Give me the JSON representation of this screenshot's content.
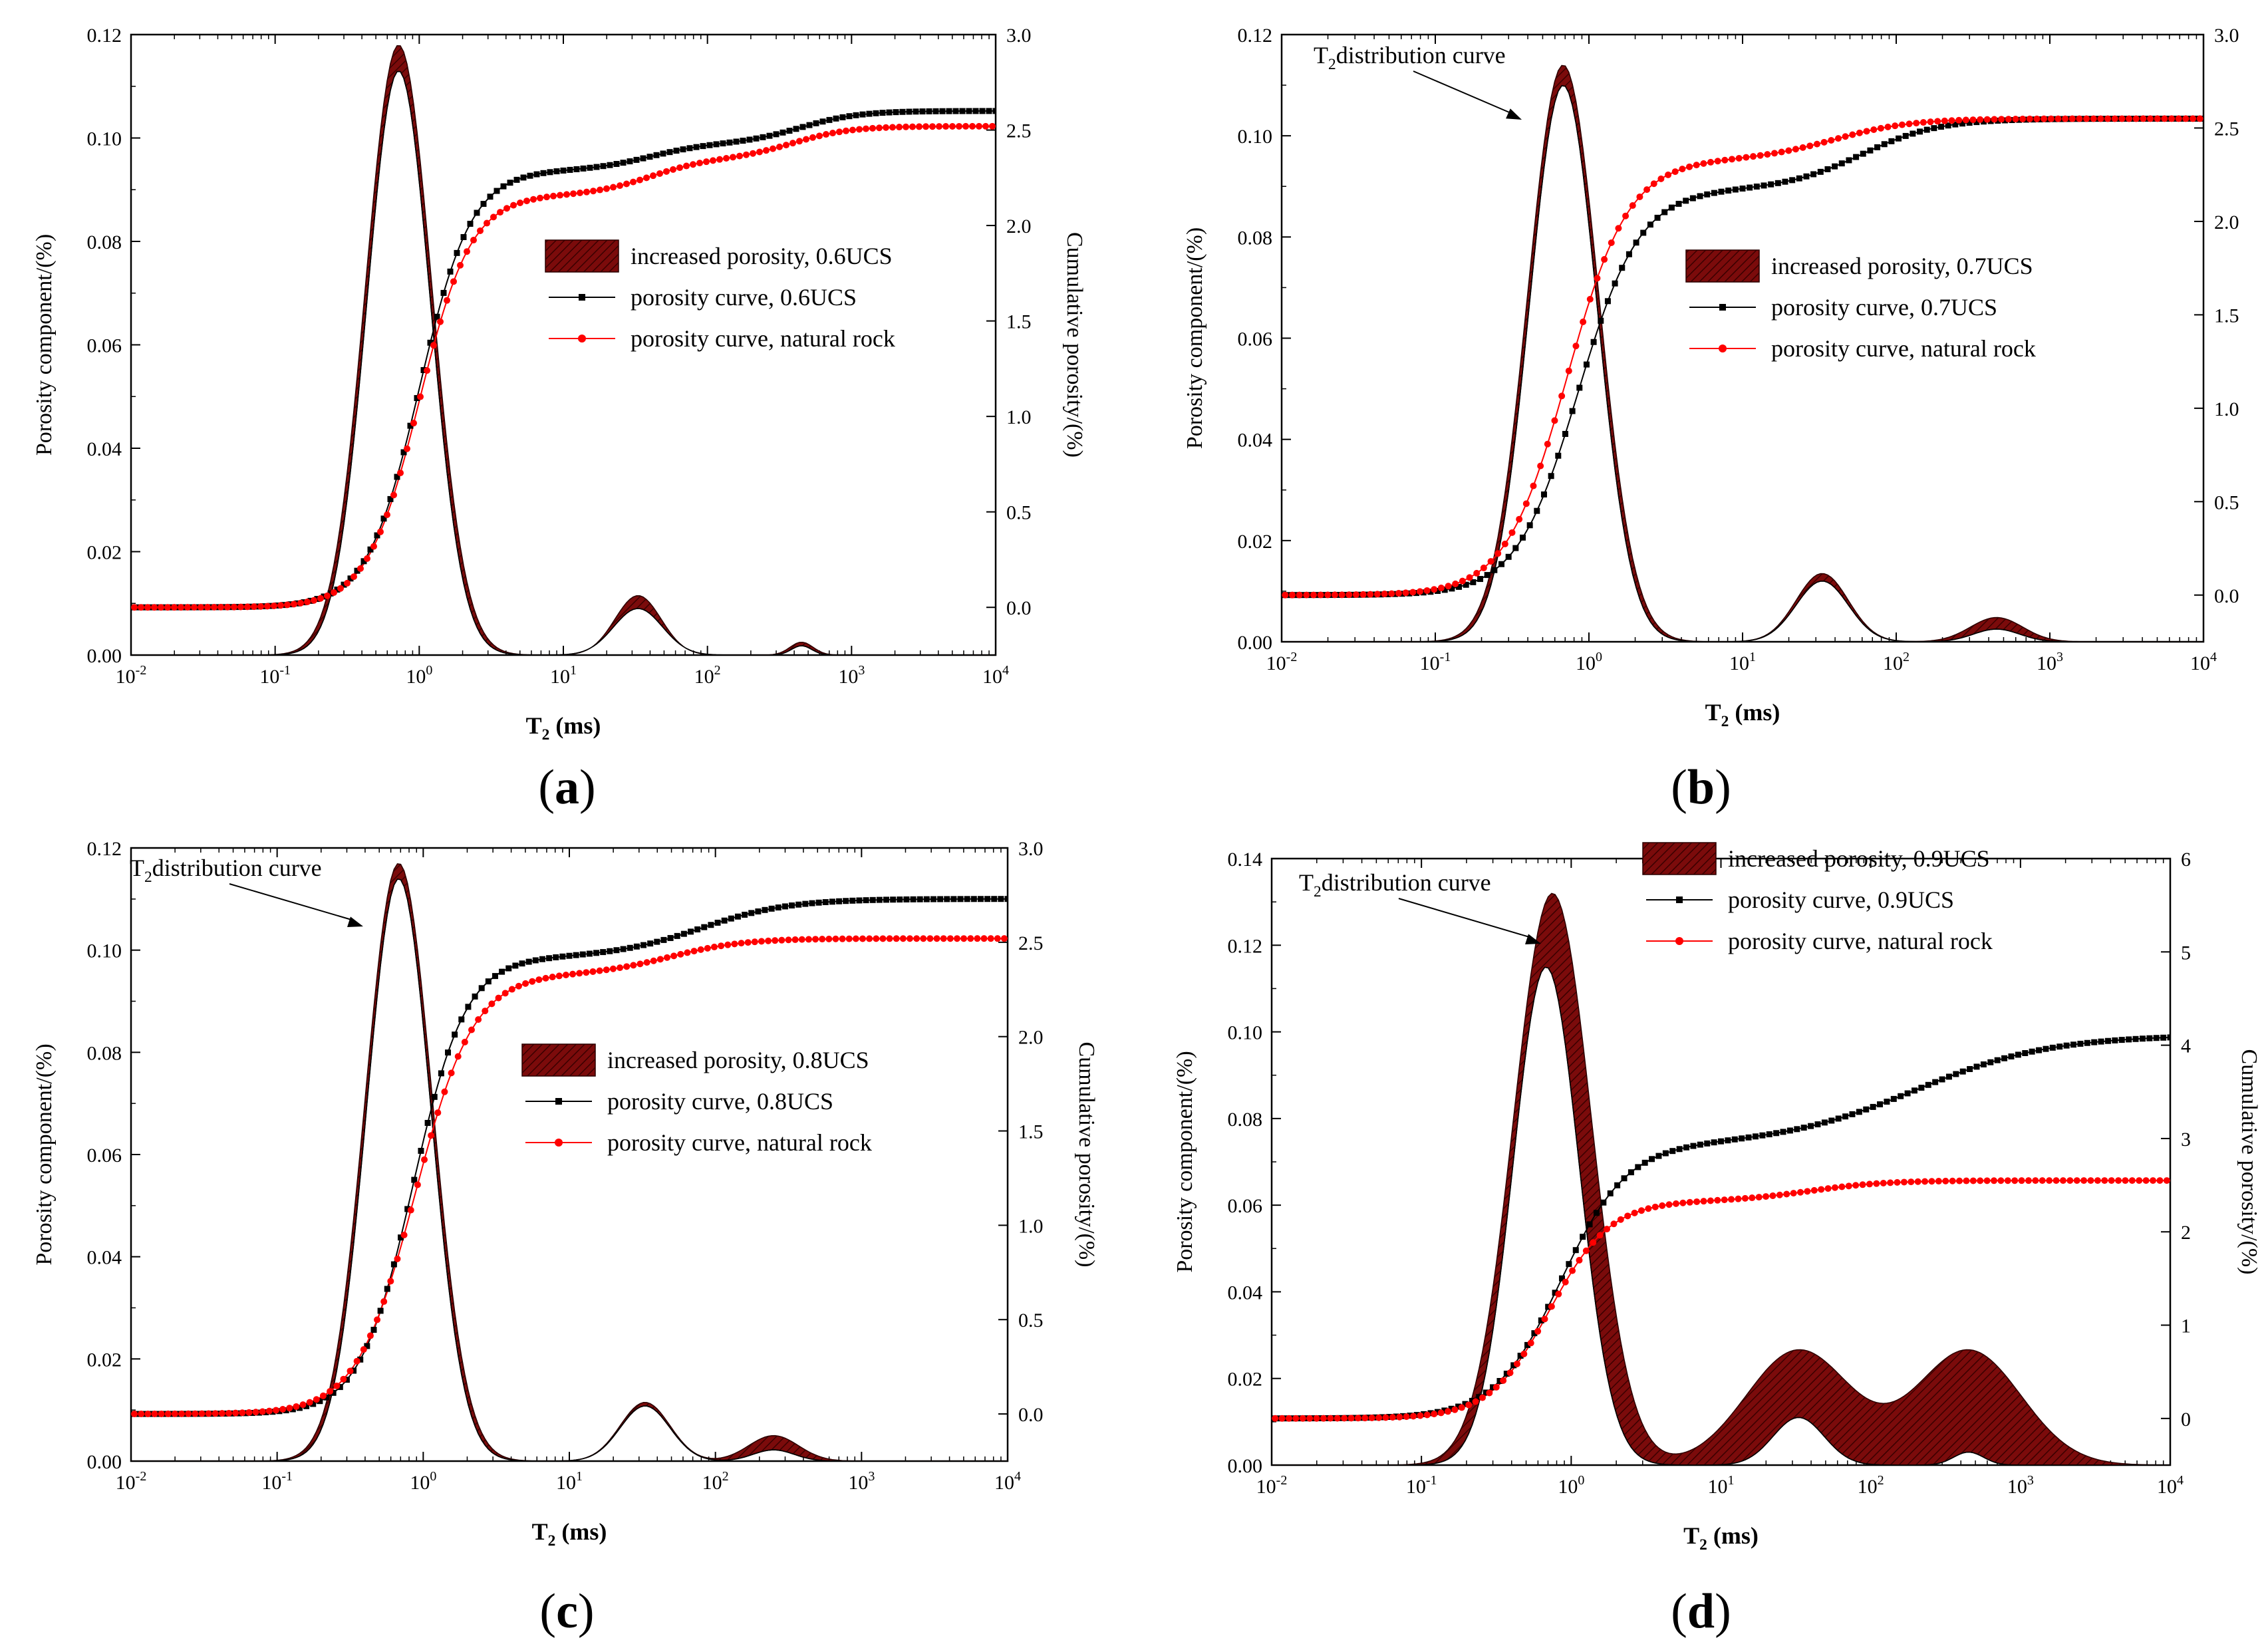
{
  "figure": {
    "x_axis_label": "T2 (ms)",
    "y_left_label": "Porosity component/(%)",
    "y_right_label": "Cumulative porosity/(%)",
    "annotation": "T2distribution curve"
  },
  "chart_data": [
    {
      "panel": "a",
      "type": "line",
      "title": "",
      "xlabel": "T2 (ms)",
      "ylabel": "Porosity component/(%)",
      "y2label": "Cumulative porosity/(%)",
      "xscale": "log",
      "xlim": [
        0.01,
        10000
      ],
      "x_ticks": [
        0.01,
        0.1,
        1,
        10,
        100,
        1000,
        10000
      ],
      "x_tick_labels": [
        "10-2",
        "10-1",
        "100",
        "101",
        "102",
        "103",
        "104"
      ],
      "ylim": [
        0,
        0.12
      ],
      "y_ticks": [
        0,
        0.02,
        0.04,
        0.06,
        0.08,
        0.1,
        0.12
      ],
      "y_tick_labels": [
        "0.00",
        "0.02",
        "0.04",
        "0.06",
        "0.08",
        "0.10",
        "0.12"
      ],
      "y2lim": [
        -0.25,
        3.0
      ],
      "y2_ticks": [
        0,
        0.5,
        1.0,
        1.5,
        2.0,
        2.5,
        3.0
      ],
      "y2_tick_labels": [
        "0.0",
        "0.5",
        "1.0",
        "1.5",
        "2.0",
        "2.5",
        "3.0"
      ],
      "legend": {
        "position": "center-right",
        "band": "increased porosity, 0.6UCS",
        "black": "porosity curve, 0.6UCS",
        "red": "porosity curve, natural rock"
      },
      "annotation": "",
      "t2_upper": {
        "peaks": [
          {
            "x": 0.72,
            "amp": 0.118,
            "w": 0.23
          },
          {
            "x": 33,
            "amp": 0.0115,
            "w": 0.16
          },
          {
            "x": 450,
            "amp": 0.0025,
            "w": 0.08
          }
        ]
      },
      "t2_lower": {
        "peaks": [
          {
            "x": 0.72,
            "amp": 0.113,
            "w": 0.22
          },
          {
            "x": 33,
            "amp": 0.009,
            "w": 0.17
          },
          {
            "x": 450,
            "amp": 0.0018,
            "w": 0.07
          }
        ]
      },
      "cumulative_black": {
        "base": 0.0,
        "steps": [
          {
            "h": 2.29,
            "c": 1.0,
            "w": 0.18
          },
          {
            "h": 0.14,
            "c": 40,
            "w": 0.2
          },
          {
            "h": 0.17,
            "c": 450,
            "w": 0.2
          }
        ]
      },
      "cumulative_red": {
        "base": 0.0,
        "steps": [
          {
            "h": 2.16,
            "c": 1.0,
            "w": 0.18
          },
          {
            "h": 0.19,
            "c": 40,
            "w": 0.2
          },
          {
            "h": 0.17,
            "c": 400,
            "w": 0.2
          }
        ]
      }
    },
    {
      "panel": "b",
      "type": "line",
      "title": "",
      "xlabel": "T2 (ms)",
      "ylabel": "Porosity component/(%)",
      "y2label": "Cumulative porosity/(%)",
      "xscale": "log",
      "xlim": [
        0.01,
        10000
      ],
      "x_ticks": [
        0.01,
        0.1,
        1,
        10,
        100,
        1000,
        10000
      ],
      "x_tick_labels": [
        "10-2",
        "10-1",
        "100",
        "101",
        "102",
        "103",
        "104"
      ],
      "ylim": [
        0,
        0.12
      ],
      "y_ticks": [
        0,
        0.02,
        0.04,
        0.06,
        0.08,
        0.1,
        0.12
      ],
      "y_tick_labels": [
        "0.00",
        "0.02",
        "0.04",
        "0.06",
        "0.08",
        "0.10",
        "0.12"
      ],
      "y2lim": [
        -0.25,
        3.0
      ],
      "y2_ticks": [
        0,
        0.5,
        1.0,
        1.5,
        2.0,
        2.5,
        3.0
      ],
      "y2_tick_labels": [
        "0.0",
        "0.5",
        "1.0",
        "1.5",
        "2.0",
        "2.5",
        "3.0"
      ],
      "legend": {
        "position": "center-right",
        "band": "increased porosity, 0.7UCS",
        "black": "porosity curve, 0.7UCS",
        "red": "porosity curve, natural rock"
      },
      "annotation": "T2distribution curve",
      "t2_upper": {
        "peaks": [
          {
            "x": 0.68,
            "amp": 0.114,
            "w": 0.23
          },
          {
            "x": 33,
            "amp": 0.0135,
            "w": 0.17
          },
          {
            "x": 450,
            "amp": 0.0048,
            "w": 0.17
          }
        ]
      },
      "t2_lower": {
        "peaks": [
          {
            "x": 0.68,
            "amp": 0.11,
            "w": 0.22
          },
          {
            "x": 33,
            "amp": 0.012,
            "w": 0.17
          },
          {
            "x": 450,
            "amp": 0.0025,
            "w": 0.15
          }
        ]
      },
      "cumulative_black": {
        "base": 0.0,
        "steps": [
          {
            "h": 2.17,
            "c": 0.85,
            "w": 0.2
          },
          {
            "h": 0.38,
            "c": 60,
            "w": 0.25
          }
        ]
      },
      "cumulative_red": {
        "base": 0.0,
        "steps": [
          {
            "h": 2.33,
            "c": 0.72,
            "w": 0.2
          },
          {
            "h": 0.22,
            "c": 40,
            "w": 0.25
          }
        ]
      }
    },
    {
      "panel": "c",
      "type": "line",
      "title": "",
      "xlabel": "T2 (ms)",
      "ylabel": "Porosity component/(%)",
      "y2label": "Cumulative porosity/(%)",
      "xscale": "log",
      "xlim": [
        0.01,
        10000
      ],
      "x_ticks": [
        0.01,
        0.1,
        1,
        10,
        100,
        1000,
        10000
      ],
      "x_tick_labels": [
        "10-2",
        "10-1",
        "100",
        "101",
        "102",
        "103",
        "104"
      ],
      "ylim": [
        0,
        0.12
      ],
      "y_ticks": [
        0,
        0.02,
        0.04,
        0.06,
        0.08,
        0.1,
        0.12
      ],
      "y_tick_labels": [
        "0.00",
        "0.02",
        "0.04",
        "0.06",
        "0.08",
        "0.10",
        "0.12"
      ],
      "y2lim": [
        -0.25,
        3.0
      ],
      "y2_ticks": [
        0,
        0.5,
        1.0,
        1.5,
        2.0,
        2.5,
        3.0
      ],
      "y2_tick_labels": [
        "0.0",
        "0.5",
        "1.0",
        "1.5",
        "2.0",
        "2.5",
        "3.0"
      ],
      "legend": {
        "position": "center-right",
        "band": "increased porosity, 0.8UCS",
        "black": "porosity curve, 0.8UCS",
        "red": "porosity curve, natural rock"
      },
      "annotation": "T2distribution curve",
      "t2_upper": {
        "peaks": [
          {
            "x": 0.68,
            "amp": 0.117,
            "w": 0.23
          },
          {
            "x": 33,
            "amp": 0.0115,
            "w": 0.17
          },
          {
            "x": 250,
            "amp": 0.005,
            "w": 0.17
          }
        ]
      },
      "t2_lower": {
        "peaks": [
          {
            "x": 0.68,
            "amp": 0.114,
            "w": 0.22
          },
          {
            "x": 33,
            "amp": 0.0108,
            "w": 0.17
          },
          {
            "x": 250,
            "amp": 0.0022,
            "w": 0.14
          }
        ]
      },
      "cumulative_black": {
        "base": 0.0,
        "steps": [
          {
            "h": 2.42,
            "c": 0.85,
            "w": 0.18
          },
          {
            "h": 0.31,
            "c": 80,
            "w": 0.3
          }
        ]
      },
      "cumulative_red": {
        "base": 0.0,
        "steps": [
          {
            "h": 2.33,
            "c": 0.88,
            "w": 0.2
          },
          {
            "h": 0.19,
            "c": 50,
            "w": 0.25
          }
        ]
      }
    },
    {
      "panel": "d",
      "type": "line",
      "title": "",
      "xlabel": "T2 (ms)",
      "ylabel": "Porosity component/(%)",
      "y2label": "Cumulative porosity/(%)",
      "xscale": "log",
      "xlim": [
        0.01,
        10000
      ],
      "x_ticks": [
        0.01,
        0.1,
        1,
        10,
        100,
        1000,
        10000
      ],
      "x_tick_labels": [
        "10-2",
        "10-1",
        "100",
        "101",
        "102",
        "103",
        "104"
      ],
      "ylim": [
        0,
        0.14
      ],
      "y_ticks": [
        0,
        0.02,
        0.04,
        0.06,
        0.08,
        0.1,
        0.12,
        0.14
      ],
      "y_tick_labels": [
        "0.00",
        "0.02",
        "0.04",
        "0.06",
        "0.08",
        "0.10",
        "0.12",
        "0.14"
      ],
      "y2lim": [
        -0.5,
        6.0
      ],
      "y2_ticks": [
        0,
        1,
        2,
        3,
        4,
        5,
        6
      ],
      "y2_tick_labels": [
        "0",
        "1",
        "2",
        "3",
        "4",
        "5",
        "6"
      ],
      "legend": {
        "position": "top-right",
        "band": "increased porosity, 0.9UCS",
        "black": "porosity curve, 0.9UCS",
        "red": "porosity curve, natural rock"
      },
      "annotation": "T2distribution curve",
      "t2_upper": {
        "peaks": [
          {
            "x": 0.75,
            "amp": 0.132,
            "w": 0.26
          },
          {
            "x": 33,
            "amp": 0.0265,
            "w": 0.35
          },
          {
            "x": 450,
            "amp": 0.0265,
            "w": 0.35
          }
        ]
      },
      "t2_lower": {
        "peaks": [
          {
            "x": 0.68,
            "amp": 0.115,
            "w": 0.22
          },
          {
            "x": 33,
            "amp": 0.011,
            "w": 0.17
          },
          {
            "x": 450,
            "amp": 0.003,
            "w": 0.1
          }
        ]
      },
      "cumulative_black": {
        "base": 0.0,
        "steps": [
          {
            "h": 2.93,
            "c": 0.85,
            "w": 0.22
          },
          {
            "h": 1.18,
            "c": 200,
            "w": 0.45
          }
        ]
      },
      "cumulative_red": {
        "base": 0.0,
        "steps": [
          {
            "h": 2.33,
            "c": 0.72,
            "w": 0.2
          },
          {
            "h": 0.22,
            "c": 40,
            "w": 0.25
          }
        ]
      }
    }
  ]
}
